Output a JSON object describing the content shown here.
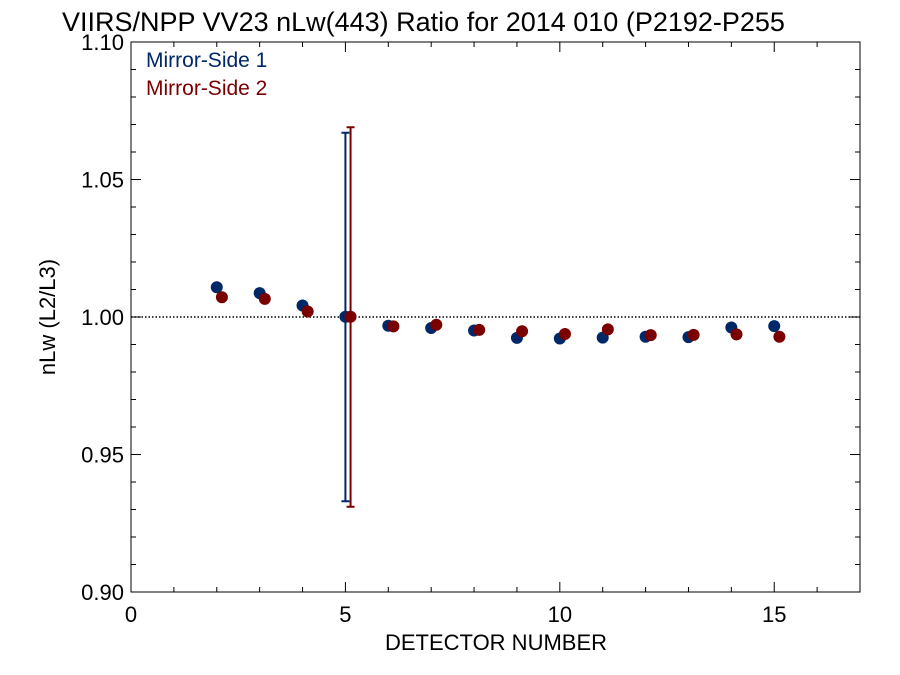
{
  "chart_data": {
    "type": "scatter",
    "title": "VIIRS/NPP VV23 nLw(443) Ratio for 2014 010 (P2192-P255",
    "xlabel": "DETECTOR NUMBER",
    "ylabel": "nLw (L2/L3)",
    "xlim": [
      0,
      17
    ],
    "ylim": [
      0.9,
      1.1
    ],
    "x_ticks": [
      0,
      5,
      10,
      15
    ],
    "x_tick_labels": [
      "0",
      "5",
      "10",
      "15"
    ],
    "y_ticks": [
      0.9,
      0.95,
      1.0,
      1.05,
      1.1
    ],
    "y_tick_labels": [
      "0.90",
      "0.95",
      "1.00",
      "1.05",
      "1.10"
    ],
    "reference_line": {
      "y": 1.0,
      "style": "dotted"
    },
    "legend_position": "top-left",
    "series": [
      {
        "name": "Mirror-Side 1",
        "color": "#002868",
        "x_offset": 0,
        "x": [
          2,
          3,
          4,
          5,
          6,
          7,
          8,
          9,
          10,
          11,
          12,
          13,
          14,
          15
        ],
        "y": [
          1.0108,
          1.0087,
          1.0042,
          1.0001,
          0.9968,
          0.996,
          0.9951,
          0.9924,
          0.9922,
          0.9925,
          0.9928,
          0.9927,
          0.9962,
          0.9967
        ],
        "error_bars": [
          {
            "x": 5,
            "low": 0.933,
            "high": 1.067
          }
        ]
      },
      {
        "name": "Mirror-Side 2",
        "color": "#7a0000",
        "x_offset": 0.12,
        "x": [
          2,
          3,
          4,
          5,
          6,
          7,
          8,
          9,
          10,
          11,
          12,
          13,
          14,
          15
        ],
        "y": [
          1.0072,
          1.0066,
          1.002,
          1.0001,
          0.9966,
          0.9972,
          0.9953,
          0.9948,
          0.9938,
          0.9955,
          0.9934,
          0.9935,
          0.9937,
          0.9928
        ],
        "error_bars": [
          {
            "x": 5,
            "low": 0.931,
            "high": 1.069
          }
        ]
      }
    ]
  }
}
